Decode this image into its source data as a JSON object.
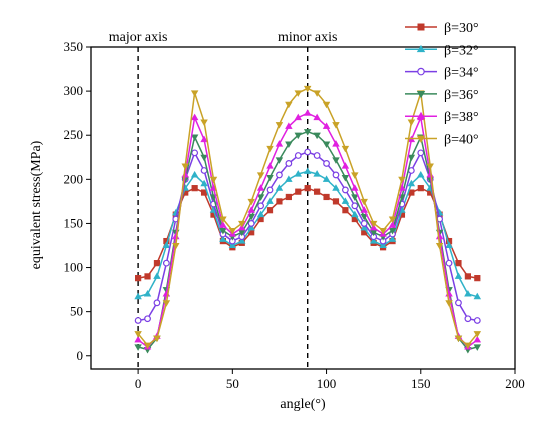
{
  "chart_data": {
    "type": "line",
    "xlabel": "angle(°)",
    "ylabel": "equivalent stress(MPa)",
    "xlim": [
      -25,
      200
    ],
    "ylim": [
      -15,
      350
    ],
    "xticks": [
      0,
      50,
      100,
      150,
      200
    ],
    "yticks": [
      0,
      50,
      100,
      150,
      200,
      250,
      300,
      350
    ],
    "grid": false,
    "legend_position": "top-right",
    "annotations": [
      {
        "label": "major axis",
        "x": 0
      },
      {
        "label": "minor axis",
        "x": 90
      }
    ],
    "x": [
      0,
      5,
      10,
      15,
      20,
      25,
      30,
      35,
      40,
      45,
      50,
      55,
      60,
      65,
      70,
      75,
      80,
      85,
      90,
      95,
      100,
      105,
      110,
      115,
      120,
      125,
      130,
      135,
      140,
      145,
      150,
      155,
      160,
      165,
      170,
      175,
      180
    ],
    "series": [
      {
        "name": "β=30°",
        "color": "#c0392b",
        "marker": "square",
        "values": [
          88,
          90,
          105,
          130,
          160,
          185,
          190,
          185,
          160,
          130,
          123,
          128,
          140,
          155,
          165,
          175,
          180,
          186,
          190,
          186,
          180,
          175,
          165,
          155,
          140,
          128,
          123,
          130,
          160,
          185,
          190,
          185,
          160,
          130,
          105,
          90,
          88
        ]
      },
      {
        "name": "β=32°",
        "color": "#2fb2c8",
        "marker": "triangle-up",
        "values": [
          67,
          70,
          90,
          125,
          162,
          190,
          205,
          195,
          165,
          132,
          125,
          130,
          145,
          160,
          175,
          190,
          200,
          206,
          209,
          206,
          200,
          190,
          175,
          160,
          145,
          130,
          125,
          132,
          165,
          195,
          205,
          190,
          162,
          125,
          90,
          70,
          67
        ]
      },
      {
        "name": "β=34°",
        "color": "#7b3fe4",
        "marker": "circle-open",
        "values": [
          40,
          42,
          60,
          105,
          155,
          200,
          230,
          210,
          172,
          138,
          130,
          135,
          150,
          170,
          188,
          205,
          218,
          227,
          231,
          227,
          218,
          205,
          188,
          170,
          150,
          135,
          130,
          138,
          172,
          210,
          230,
          200,
          155,
          105,
          60,
          42,
          40
        ]
      },
      {
        "name": "β=36°",
        "color": "#3a8a5c",
        "marker": "triangle-down",
        "values": [
          10,
          7,
          20,
          75,
          140,
          200,
          248,
          225,
          180,
          142,
          135,
          140,
          158,
          180,
          202,
          222,
          240,
          250,
          254,
          250,
          240,
          222,
          202,
          180,
          158,
          140,
          135,
          142,
          180,
          225,
          248,
          200,
          140,
          75,
          20,
          7,
          10
        ]
      },
      {
        "name": "β=38°",
        "color": "#e020e0",
        "marker": "triangle-up",
        "values": [
          18,
          10,
          22,
          70,
          135,
          205,
          270,
          245,
          190,
          148,
          138,
          145,
          165,
          190,
          215,
          240,
          260,
          270,
          275,
          270,
          260,
          240,
          215,
          190,
          165,
          145,
          138,
          148,
          190,
          245,
          270,
          205,
          135,
          70,
          22,
          10,
          18
        ]
      },
      {
        "name": "β=40°",
        "color": "#c9a227",
        "marker": "triangle-down",
        "values": [
          25,
          12,
          20,
          60,
          125,
          215,
          298,
          265,
          200,
          155,
          142,
          150,
          175,
          205,
          235,
          262,
          285,
          298,
          303,
          298,
          285,
          262,
          235,
          205,
          175,
          150,
          142,
          155,
          200,
          265,
          298,
          215,
          125,
          60,
          20,
          12,
          25
        ]
      }
    ]
  }
}
